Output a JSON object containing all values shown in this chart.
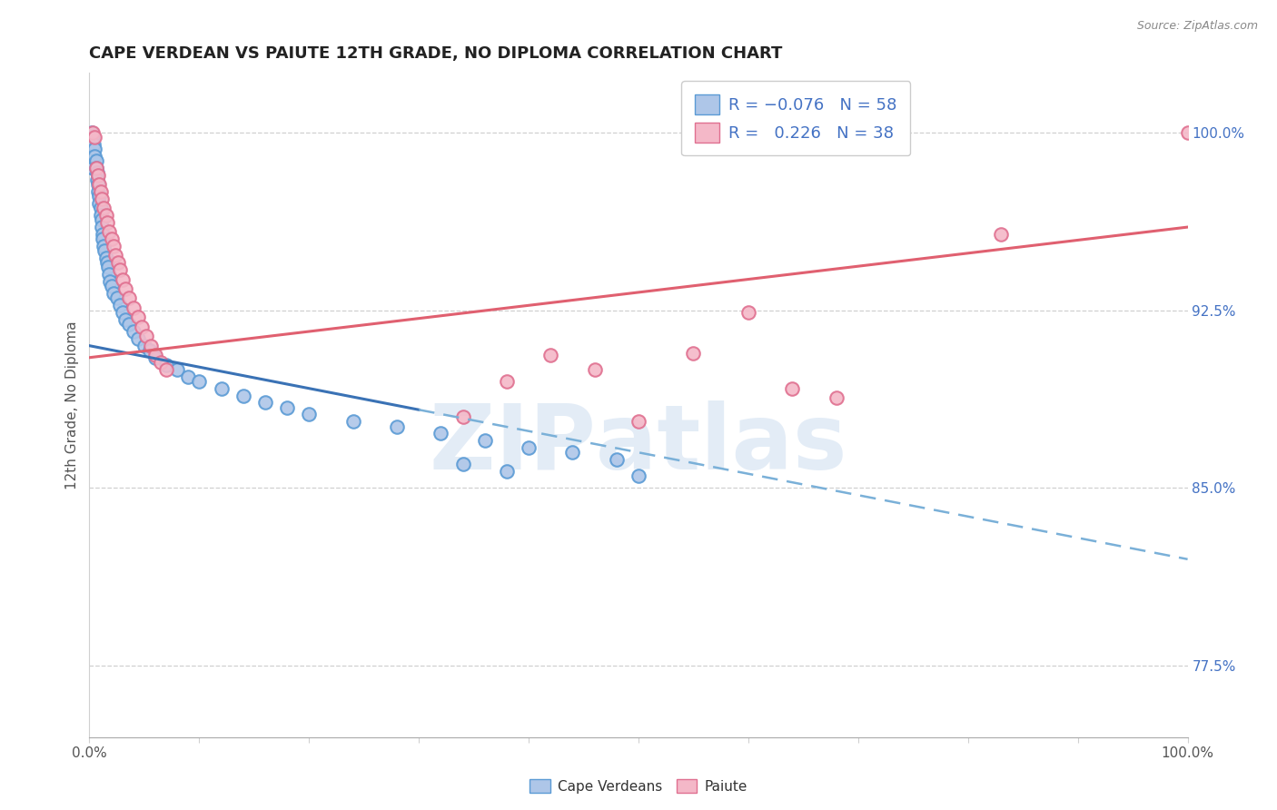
{
  "title": "CAPE VERDEAN VS PAIUTE 12TH GRADE, NO DIPLOMA CORRELATION CHART",
  "source_text": "Source: ZipAtlas.com",
  "ylabel": "12th Grade, No Diploma",
  "legend_label_blue": "Cape Verdeans",
  "legend_label_pink": "Paiute",
  "R_blue": -0.076,
  "N_blue": 58,
  "R_pink": 0.226,
  "N_pink": 38,
  "right_yticks": [
    1.0,
    0.925,
    0.85,
    0.775
  ],
  "right_yticklabels": [
    "100.0%",
    "92.5%",
    "85.0%",
    "77.5%"
  ],
  "xlim": [
    0.0,
    1.0
  ],
  "ylim": [
    0.745,
    1.025
  ],
  "blue_dot_color": "#aec6e8",
  "blue_dot_edge": "#5b9bd5",
  "pink_dot_color": "#f4b8c8",
  "pink_dot_edge": "#e07090",
  "blue_line_solid_color": "#3a72b5",
  "blue_line_dash_color": "#7ab0d8",
  "pink_line_color": "#e06070",
  "grid_color": "#d0d0d0",
  "title_color": "#222222",
  "axis_tick_color": "#555555",
  "right_axis_color": "#4472c4",
  "watermark_color": "#ccddf0",
  "blue_x": [
    0.002,
    0.003,
    0.003,
    0.004,
    0.005,
    0.005,
    0.006,
    0.006,
    0.007,
    0.007,
    0.008,
    0.008,
    0.009,
    0.009,
    0.01,
    0.01,
    0.011,
    0.011,
    0.012,
    0.012,
    0.013,
    0.014,
    0.015,
    0.016,
    0.017,
    0.018,
    0.019,
    0.02,
    0.022,
    0.025,
    0.028,
    0.03,
    0.033,
    0.036,
    0.04,
    0.044,
    0.05,
    0.055,
    0.06,
    0.07,
    0.08,
    0.09,
    0.1,
    0.12,
    0.14,
    0.16,
    0.18,
    0.2,
    0.24,
    0.28,
    0.32,
    0.36,
    0.4,
    0.44,
    0.48,
    0.34,
    0.38,
    0.5
  ],
  "blue_y": [
    1.0,
    0.998,
    0.985,
    0.995,
    0.993,
    0.99,
    0.988,
    0.985,
    0.983,
    0.98,
    0.978,
    0.975,
    0.973,
    0.97,
    0.968,
    0.965,
    0.963,
    0.96,
    0.957,
    0.955,
    0.952,
    0.95,
    0.947,
    0.945,
    0.943,
    0.94,
    0.937,
    0.935,
    0.932,
    0.93,
    0.927,
    0.924,
    0.921,
    0.919,
    0.916,
    0.913,
    0.91,
    0.908,
    0.905,
    0.902,
    0.9,
    0.897,
    0.895,
    0.892,
    0.889,
    0.886,
    0.884,
    0.881,
    0.878,
    0.876,
    0.873,
    0.87,
    0.867,
    0.865,
    0.862,
    0.86,
    0.857,
    0.855
  ],
  "pink_x": [
    0.003,
    0.005,
    0.006,
    0.008,
    0.009,
    0.01,
    0.011,
    0.013,
    0.015,
    0.016,
    0.018,
    0.02,
    0.022,
    0.024,
    0.026,
    0.028,
    0.03,
    0.033,
    0.036,
    0.04,
    0.044,
    0.048,
    0.052,
    0.056,
    0.06,
    0.065,
    0.07,
    0.34,
    0.38,
    0.42,
    0.46,
    0.5,
    0.55,
    0.6,
    0.64,
    0.68,
    0.83,
    1.0
  ],
  "pink_y": [
    1.0,
    0.998,
    0.985,
    0.982,
    0.978,
    0.975,
    0.972,
    0.968,
    0.965,
    0.962,
    0.958,
    0.955,
    0.952,
    0.948,
    0.945,
    0.942,
    0.938,
    0.934,
    0.93,
    0.926,
    0.922,
    0.918,
    0.914,
    0.91,
    0.906,
    0.903,
    0.9,
    0.88,
    0.895,
    0.906,
    0.9,
    0.878,
    0.907,
    0.924,
    0.892,
    0.888,
    0.957,
    1.0
  ],
  "blue_line_x0": 0.0,
  "blue_line_x_solid_end": 0.3,
  "blue_line_x1": 1.0,
  "blue_line_y_at_0": 0.91,
  "blue_line_y_at_1": 0.82,
  "pink_line_y_at_0": 0.905,
  "pink_line_y_at_1": 0.96
}
